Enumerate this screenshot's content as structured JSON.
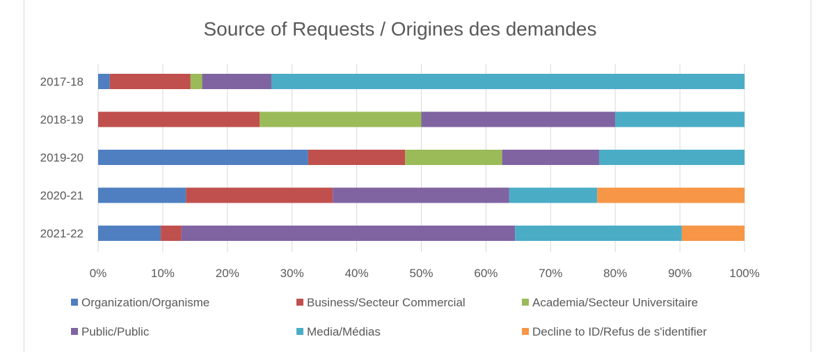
{
  "chart_data": {
    "type": "bar",
    "orientation": "horizontal",
    "stacked": "percent",
    "title": "Source of Requests / Origines des demandes",
    "categories": [
      "2017-18",
      "2018-19",
      "2019-20",
      "2020-21",
      "2021-22"
    ],
    "series": [
      {
        "name": "Organization/Organisme",
        "color": "#4f7fc0",
        "values": [
          1.8,
          0,
          32.5,
          13.6,
          9.7
        ]
      },
      {
        "name": "Business/Secteur Commercial",
        "color": "#c0504d",
        "values": [
          12.5,
          25,
          15,
          22.7,
          3.2
        ]
      },
      {
        "name": "Academia/Secteur Universitaire",
        "color": "#9bbb59",
        "values": [
          1.8,
          25,
          15,
          0,
          0
        ]
      },
      {
        "name": "Public/Public",
        "color": "#8064a2",
        "values": [
          10.7,
          30,
          15,
          27.3,
          51.6
        ]
      },
      {
        "name": "Media/Médias",
        "color": "#4bacc6",
        "values": [
          73.2,
          20,
          22.5,
          13.6,
          25.8
        ]
      },
      {
        "name": "Decline to ID/Refus de s'identifier",
        "color": "#f79646",
        "values": [
          0,
          0,
          0,
          22.8,
          9.7
        ]
      }
    ],
    "xlim": [
      0,
      100
    ],
    "xticks": [
      "0%",
      "10%",
      "20%",
      "30%",
      "40%",
      "50%",
      "60%",
      "70%",
      "80%",
      "90%",
      "100%"
    ],
    "grid": true,
    "legend": "bottom"
  }
}
